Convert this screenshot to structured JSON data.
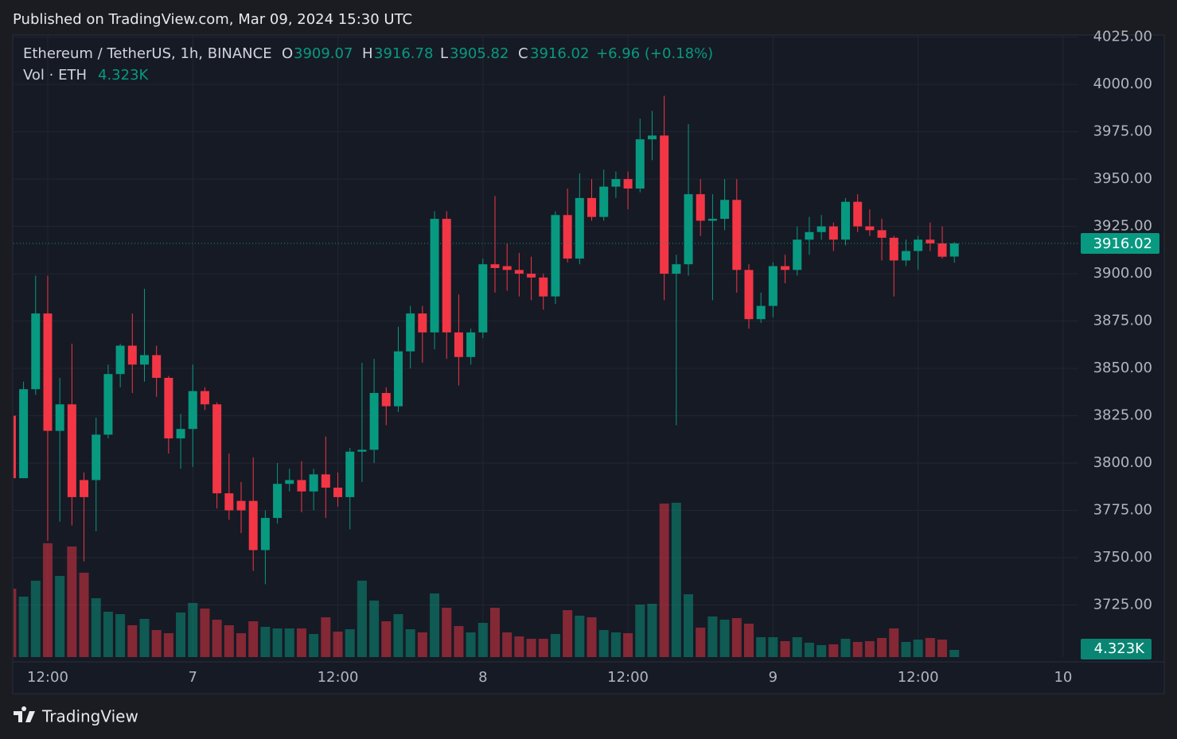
{
  "header": {
    "published": "Published on TradingView.com, Mar 09, 2024 15:30 UTC"
  },
  "footer": {
    "brand": "TradingView"
  },
  "chart_data": {
    "type": "candlestick",
    "symbol": "Ethereum / TetherUS, 1h, BINANCE",
    "ohlc_letters": [
      "O",
      "H",
      "L",
      "C"
    ],
    "change_label": "+6.96 (+0.18%)",
    "volume_title": "Vol · ETH",
    "volume_label": "4.323K",
    "up_color": "#089981",
    "down_color": "#f23645",
    "categories": [
      null,
      null,
      null,
      "12:00",
      null,
      null,
      null,
      null,
      null,
      null,
      null,
      null,
      null,
      null,
      null,
      "7",
      null,
      null,
      null,
      null,
      null,
      null,
      null,
      null,
      null,
      null,
      null,
      "12:00",
      null,
      null,
      null,
      null,
      null,
      null,
      null,
      null,
      null,
      null,
      null,
      "8",
      null,
      null,
      null,
      null,
      null,
      null,
      null,
      null,
      null,
      null,
      null,
      "12:00",
      null,
      null,
      null,
      null,
      null,
      null,
      null,
      null,
      null,
      null,
      null,
      "9",
      null,
      null,
      null,
      null,
      null,
      null,
      null,
      null,
      null,
      null,
      null,
      "12:00",
      null,
      null,
      null,
      null,
      null,
      null,
      null,
      null,
      null,
      null,
      null,
      "10"
    ],
    "open": [
      3825,
      3792,
      3839,
      3879,
      3817,
      3831,
      3791,
      3791,
      3815,
      3847,
      3862,
      3852,
      3857,
      3845,
      3813,
      3818,
      3838,
      3831,
      3784,
      3780,
      3780,
      3754,
      3771,
      3789,
      3791,
      3785,
      3794,
      3787,
      3782,
      3806,
      3807,
      3837,
      3830,
      3859,
      3879,
      3869,
      3929,
      3869,
      3856,
      3869,
      3905,
      3904,
      3902,
      3900,
      3898,
      3888,
      3931,
      3908,
      3940,
      3930,
      3946,
      3950,
      3945,
      3971,
      3973,
      3900,
      3905,
      3942,
      3928,
      3929,
      3939,
      3902,
      3876,
      3883,
      3904,
      3902,
      3918,
      3922,
      3925,
      3918,
      3938,
      3925,
      3923,
      3919,
      3907,
      3912,
      3918,
      3916,
      3909.07,
      null,
      null,
      null,
      null,
      null,
      null,
      null,
      null,
      null
    ],
    "high": [
      3826,
      3843,
      3899,
      3899,
      3845,
      3863,
      3795,
      3824,
      3852,
      3863,
      3879,
      3892,
      3862,
      3846,
      3826,
      3852,
      3840,
      3832,
      3805,
      3790,
      3803,
      3775,
      3800,
      3797,
      3801,
      3797,
      3814,
      3795,
      3808,
      3853,
      3855,
      3840,
      3872,
      3883,
      3883,
      3933,
      3933,
      3889,
      3871,
      3908,
      3941,
      3916,
      3911,
      3909,
      3900,
      3933,
      3945,
      3953,
      3950,
      3955,
      3954,
      3954,
      3982,
      3986,
      3994,
      3910,
      3979,
      3950,
      3942,
      3950,
      3950,
      3905,
      3890,
      3906,
      3910,
      3925,
      3930,
      3931,
      3927,
      3940,
      3942,
      3934,
      3929,
      3920,
      3918,
      3920,
      3927,
      3925,
      3916.78,
      null,
      null,
      null,
      null,
      null,
      null,
      null,
      null,
      null
    ],
    "low": [
      3791,
      3792,
      3836,
      3759,
      3769,
      3767,
      3748,
      3764,
      3813,
      3840,
      3837,
      3843,
      3835,
      3805,
      3797,
      3798,
      3828,
      3776,
      3770,
      3763,
      3743,
      3736,
      3768,
      3785,
      3774,
      3775,
      3771,
      3777,
      3765,
      3790,
      3800,
      3820,
      3827,
      3850,
      3853,
      3860,
      3855,
      3841,
      3852,
      3866,
      3890,
      3891,
      3888,
      3886,
      3881,
      3884,
      3906,
      3905,
      3928,
      3928,
      3940,
      3934,
      3943,
      3960,
      3886,
      3820,
      3899,
      3920,
      3886,
      3923,
      3890,
      3871,
      3874,
      3877,
      3895,
      3899,
      3910,
      3918,
      3912,
      3915,
      3922,
      3920,
      3907,
      3888,
      3904,
      3902,
      3912,
      3908,
      3905.82,
      null,
      null,
      null,
      null,
      null,
      null,
      null,
      null,
      null
    ],
    "close": [
      3792,
      3839,
      3879,
      3817,
      3831,
      3782,
      3782,
      3815,
      3847,
      3862,
      3852,
      3857,
      3845,
      3813,
      3818,
      3838,
      3831,
      3784,
      3775,
      3775,
      3754,
      3771,
      3789,
      3791,
      3785,
      3794,
      3787,
      3782,
      3806,
      3807,
      3837,
      3830,
      3859,
      3879,
      3869,
      3929,
      3869,
      3856,
      3869,
      3905,
      3903,
      3902,
      3900,
      3898,
      3888,
      3931,
      3908,
      3940,
      3930,
      3946,
      3950,
      3945,
      3971,
      3973,
      3900,
      3905,
      3942,
      3928,
      3929,
      3939,
      3902,
      3876,
      3883,
      3904,
      3902,
      3918,
      3922,
      3925,
      3918,
      3938,
      3925,
      3923,
      3919,
      3907,
      3912,
      3918,
      3916,
      3909,
      3916.02,
      null,
      null,
      null,
      null,
      null,
      null,
      null,
      null,
      null
    ],
    "volume": [
      41280,
      36480,
      46080,
      68640,
      48960,
      66720,
      50880,
      35520,
      27360,
      25920,
      19200,
      23040,
      16320,
      14400,
      26880,
      32640,
      29280,
      22560,
      19200,
      14400,
      21600,
      18240,
      17280,
      17280,
      17280,
      13920,
      24000,
      15360,
      16800,
      46080,
      34080,
      21600,
      25920,
      16800,
      14880,
      38400,
      29760,
      18720,
      14880,
      20640,
      29760,
      14880,
      12480,
      11040,
      11040,
      13920,
      28320,
      24960,
      24000,
      16320,
      14880,
      14400,
      31680,
      32160,
      92640,
      93120,
      37920,
      17760,
      24480,
      22560,
      23520,
      20160,
      12000,
      12000,
      9600,
      12000,
      8640,
      7200,
      7680,
      11040,
      9120,
      9600,
      11520,
      17280,
      9120,
      10560,
      11520,
      10560,
      4323,
      null,
      null,
      null,
      null,
      null,
      null,
      null,
      null,
      null
    ],
    "ylim": [
      3697.5,
      4026.1
    ],
    "yticks": [
      {
        "value": 3725,
        "label": "3725.00"
      },
      {
        "value": 3750,
        "label": "3750.00"
      },
      {
        "value": 3775,
        "label": "3775.00"
      },
      {
        "value": 3800,
        "label": "3800.00"
      },
      {
        "value": 3825,
        "label": "3825.00"
      },
      {
        "value": 3850,
        "label": "3850.00"
      },
      {
        "value": 3875,
        "label": "3875.00"
      },
      {
        "value": 3900,
        "label": "3900.00"
      },
      {
        "value": 3925,
        "label": "3925.00"
      },
      {
        "value": 3950,
        "label": "3950.00"
      },
      {
        "value": 3975,
        "label": "3975.00"
      },
      {
        "value": 4000,
        "label": "4000.00"
      },
      {
        "value": 4025,
        "label": "4025.00"
      }
    ],
    "volume_lim": [
      0,
      192000
    ],
    "grid": true
  }
}
